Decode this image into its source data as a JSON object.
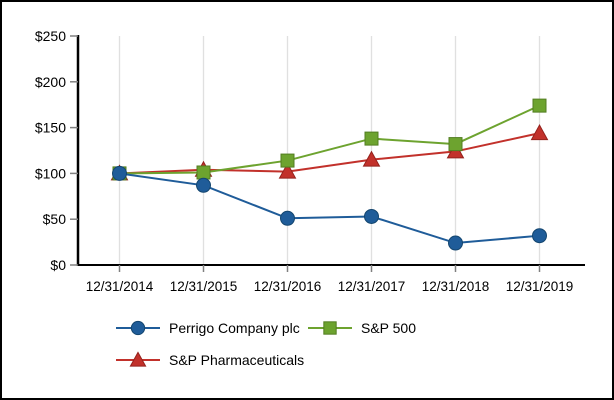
{
  "chart_data": {
    "type": "line",
    "x": [
      "12/31/2014",
      "12/31/2015",
      "12/31/2016",
      "12/31/2017",
      "12/31/2018",
      "12/31/2019"
    ],
    "series": [
      {
        "name": "Perrigo Company plc",
        "marker": "circle",
        "color": "#1F5C99",
        "edge": "#14466F",
        "values": [
          100,
          87,
          51,
          53,
          24,
          32
        ]
      },
      {
        "name": "S&P 500",
        "marker": "square",
        "color": "#6DA32F",
        "edge": "#527D20",
        "values": [
          100,
          101,
          114,
          138,
          132,
          174
        ]
      },
      {
        "name": "S&P Pharmaceuticals",
        "marker": "triangle",
        "color": "#C2312B",
        "edge": "#94221D",
        "values": [
          100,
          104,
          102,
          115,
          124,
          144
        ]
      }
    ],
    "ylim": [
      0,
      250
    ],
    "ytick_step": 50,
    "ytick_labels": [
      "$0",
      "$50",
      "$100",
      "$150",
      "$200",
      "$250"
    ],
    "grid": "vertical-only",
    "legend_position": "bottom"
  },
  "colors": {
    "background": "#FFFFFF",
    "frame_border": "#000000",
    "axis": "#000000",
    "tick": "#808080",
    "gridline": "#E0E0E0",
    "text": "#000000"
  }
}
